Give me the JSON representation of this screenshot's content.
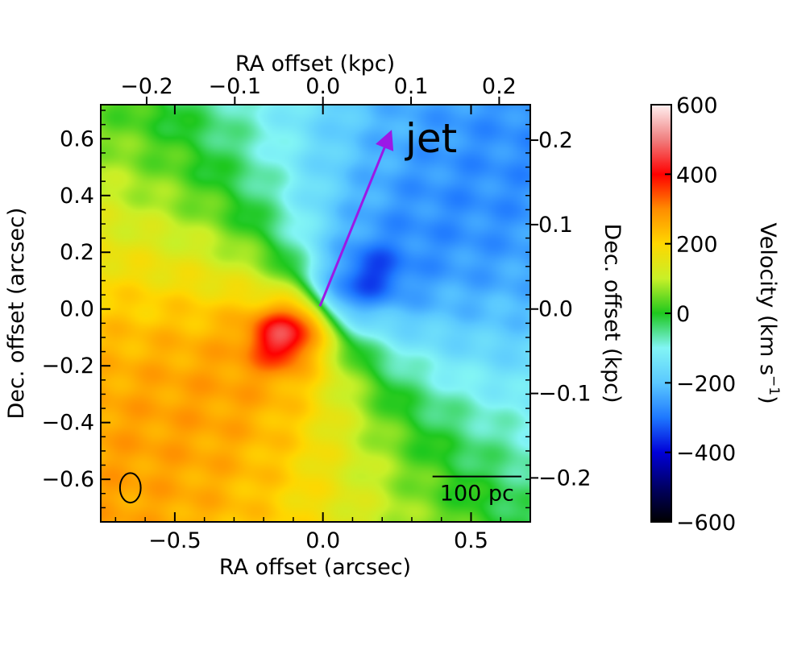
{
  "chart_data": {
    "type": "heatmap",
    "title": "",
    "xlabel": "RA offset (arcsec)",
    "ylabel": "Dec. offset (arcsec)",
    "top_xlabel": "RA offset (kpc)",
    "right_ylabel": "Dec. offset (kpc)",
    "xlim": [
      -0.75,
      0.7
    ],
    "ylim": [
      -0.75,
      0.72
    ],
    "x_ticks": [
      -0.5,
      0.0,
      0.5
    ],
    "x_tick_labels": [
      "−0.5",
      "0.0",
      "0.5"
    ],
    "y_ticks": [
      -0.6,
      -0.4,
      -0.2,
      0.0,
      0.2,
      0.4,
      0.6
    ],
    "y_tick_labels": [
      "−0.6",
      "−0.4",
      "−0.2",
      "0.0",
      "0.2",
      "0.4",
      "0.6"
    ],
    "top_ticks_arcsec": [
      -0.595,
      -0.2975,
      0.0,
      0.2975,
      0.595
    ],
    "top_tick_labels": [
      "−0.2",
      "−0.1",
      "0.0",
      "0.1",
      "0.2"
    ],
    "right_ticks_arcsec": [
      -0.595,
      -0.2975,
      0.0,
      0.2975,
      0.595
    ],
    "right_tick_labels": [
      "−0.2",
      "−0.1",
      "0.0",
      "0.1",
      "0.2"
    ],
    "colorbar": {
      "label": "Velocity (km s",
      "label_sup": "−1",
      "label_close": ")",
      "range": [
        -600,
        600
      ],
      "ticks": [
        600,
        400,
        200,
        0,
        -200,
        -400,
        -600
      ],
      "tick_labels": [
        "600",
        "400",
        "200",
        "0",
        "−200",
        "−400",
        "−600"
      ]
    },
    "model": {
      "description_kind": "rotating disk velocity field",
      "v_max": 270,
      "receding_pa_deg": 232,
      "blob_red": {
        "x": -0.14,
        "y": -0.1,
        "v": 440
      },
      "blob_blue": {
        "x": 0.17,
        "y": 0.12,
        "v": -230
      }
    },
    "annotations": {
      "jet_label": "jet",
      "jet_arrow": {
        "from": [
          -0.01,
          0.01
        ],
        "to": [
          0.22,
          0.6
        ]
      },
      "scale_bar_label": "100 pc",
      "scale_bar_length_arcsec": 0.3,
      "beam": {
        "x": -0.65,
        "y": -0.63,
        "major_arcsec": 0.1,
        "minor_arcsec": 0.07
      }
    },
    "colors": {
      "arrow": "#9b19e6",
      "beam": "#000000"
    }
  }
}
